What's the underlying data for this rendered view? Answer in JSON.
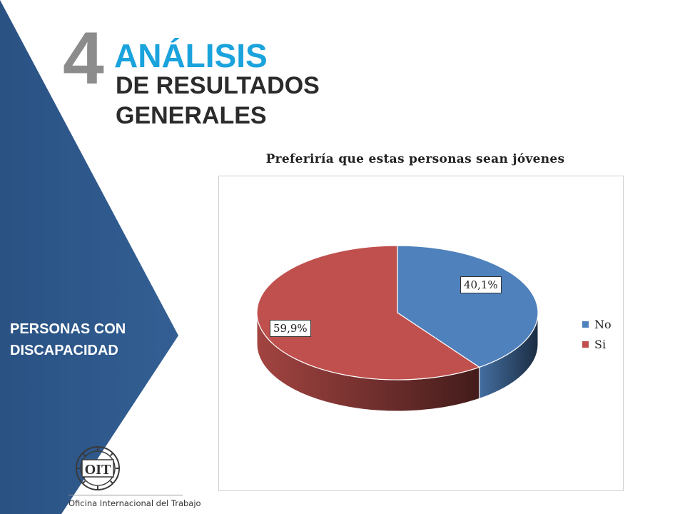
{
  "header": {
    "section_number": "4",
    "title_line1": "ANÁLISIS",
    "title_line2": "DE RESULTADOS",
    "title_line3": "GENERALES"
  },
  "sidebar": {
    "caption_line1": "PERSONAS CON",
    "caption_line2": "DISCAPACIDAD",
    "panel_color": "#2f5a8c"
  },
  "logo": {
    "letters": "OIT",
    "caption": "Oficina Internacional del Trabajo"
  },
  "chart_data": {
    "type": "pie",
    "title": "Preferiría que estas personas sean jóvenes",
    "legend_position": "right",
    "slices": [
      {
        "name": "No",
        "value": 40.1,
        "label": "40,1%",
        "color": "#4f81bd"
      },
      {
        "name": "Si",
        "value": 59.9,
        "label": "59,9%",
        "color": "#c0504d"
      }
    ]
  }
}
